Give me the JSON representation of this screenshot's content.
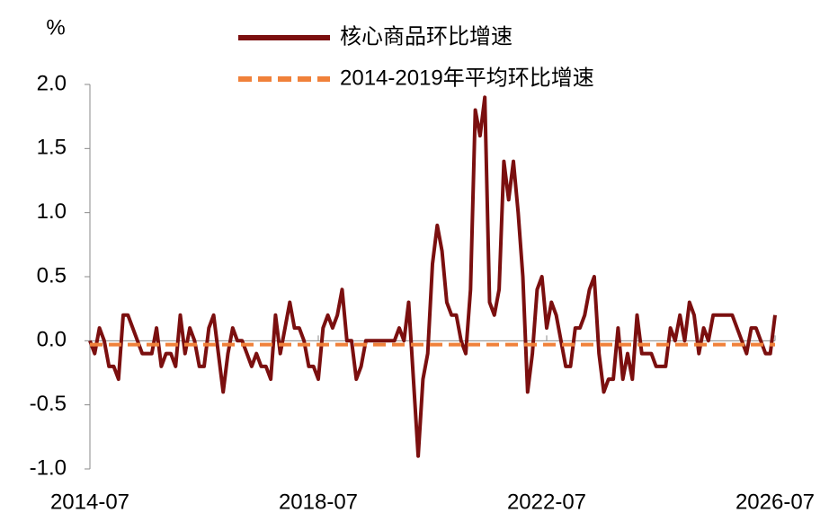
{
  "chart_data": {
    "type": "line",
    "ylabel": "%",
    "x": [
      "2014-07",
      "2014-08",
      "2014-09",
      "2014-10",
      "2014-11",
      "2014-12",
      "2015-01",
      "2015-02",
      "2015-03",
      "2015-04",
      "2015-05",
      "2015-06",
      "2015-07",
      "2015-08",
      "2015-09",
      "2015-10",
      "2015-11",
      "2015-12",
      "2016-01",
      "2016-02",
      "2016-03",
      "2016-04",
      "2016-05",
      "2016-06",
      "2016-07",
      "2016-08",
      "2016-09",
      "2016-10",
      "2016-11",
      "2016-12",
      "2017-01",
      "2017-02",
      "2017-03",
      "2017-04",
      "2017-05",
      "2017-06",
      "2017-07",
      "2017-08",
      "2017-09",
      "2017-10",
      "2017-11",
      "2017-12",
      "2018-01",
      "2018-02",
      "2018-03",
      "2018-04",
      "2018-05",
      "2018-06",
      "2018-07",
      "2018-08",
      "2018-09",
      "2018-10",
      "2018-11",
      "2018-12",
      "2019-01",
      "2019-02",
      "2019-03",
      "2019-04",
      "2019-05",
      "2019-06",
      "2019-07",
      "2019-08",
      "2019-09",
      "2019-10",
      "2019-11",
      "2019-12",
      "2020-01",
      "2020-02",
      "2020-03",
      "2020-04",
      "2020-05",
      "2020-06",
      "2020-07",
      "2020-08",
      "2020-09",
      "2020-10",
      "2020-11",
      "2020-12",
      "2021-01",
      "2021-02",
      "2021-03",
      "2021-04",
      "2021-05",
      "2021-06",
      "2021-07",
      "2021-08",
      "2021-09",
      "2021-10",
      "2021-11",
      "2021-12",
      "2022-01",
      "2022-02",
      "2022-03",
      "2022-04",
      "2022-05",
      "2022-06",
      "2022-07",
      "2022-08",
      "2022-09",
      "2022-10",
      "2022-11",
      "2022-12",
      "2023-01",
      "2023-02",
      "2023-03",
      "2023-04",
      "2023-05",
      "2023-06",
      "2023-07",
      "2023-08",
      "2023-09",
      "2023-10",
      "2023-11",
      "2023-12",
      "2024-01",
      "2024-02",
      "2024-03",
      "2024-04",
      "2024-05",
      "2024-06",
      "2024-07",
      "2024-08",
      "2024-09",
      "2024-10",
      "2024-11",
      "2024-12",
      "2025-01",
      "2025-02",
      "2025-03",
      "2025-04",
      "2025-05",
      "2025-06",
      "2025-07",
      "2025-08",
      "2025-09",
      "2025-10",
      "2025-11",
      "2025-12",
      "2026-01",
      "2026-02",
      "2026-03",
      "2026-04",
      "2026-05",
      "2026-06",
      "2026-07"
    ],
    "series": [
      {
        "name": "核心商品环比增速",
        "color": "#7b0f0f",
        "style": "solid",
        "values": [
          0,
          -0.1,
          0.1,
          0,
          -0.2,
          -0.2,
          -0.3,
          0.2,
          0.2,
          0.1,
          0,
          -0.1,
          -0.1,
          -0.1,
          0.1,
          -0.2,
          -0.1,
          -0.1,
          -0.2,
          0.2,
          -0.1,
          0.1,
          0,
          -0.2,
          -0.2,
          0.1,
          0.2,
          -0.1,
          -0.4,
          -0.1,
          0.1,
          0,
          0,
          -0.1,
          -0.2,
          -0.1,
          -0.2,
          -0.2,
          -0.3,
          0.2,
          -0.1,
          0.1,
          0.3,
          0.1,
          0.1,
          0,
          -0.2,
          -0.2,
          -0.3,
          0.1,
          0.2,
          0.1,
          0.2,
          0.4,
          0,
          0,
          -0.3,
          -0.2,
          0,
          0,
          0,
          0,
          0,
          0,
          0,
          0.1,
          0,
          0.3,
          -0.3,
          -0.9,
          -0.3,
          -0.1,
          0.6,
          0.9,
          0.7,
          0.3,
          0.2,
          0.2,
          0,
          -0.1,
          0.4,
          1.8,
          1.6,
          1.9,
          0.3,
          0.2,
          0.4,
          1.4,
          1.1,
          1.4,
          1.0,
          0.5,
          -0.4,
          -0.1,
          0.4,
          0.5,
          0.1,
          0.3,
          0.2,
          0,
          -0.2,
          -0.2,
          0.1,
          0.1,
          0.2,
          0.4,
          0.5,
          -0.1,
          -0.4,
          -0.3,
          -0.3,
          0.1,
          -0.3,
          -0.1,
          -0.3,
          0.2,
          -0.1,
          -0.1,
          -0.1,
          -0.2,
          -0.2,
          -0.2,
          0.1,
          0,
          0.2,
          0,
          0.3,
          0.2,
          -0.1,
          0.1,
          0,
          0.2,
          0.2,
          0.2,
          0.2,
          0.2,
          0.1,
          0,
          -0.1,
          0.1,
          0.1,
          0,
          -0.1,
          -0.1,
          0.2
        ]
      },
      {
        "name": "2014-2019年平均环比增速",
        "color": "#f0813a",
        "style": "dashed",
        "values": [
          -0.03,
          -0.03,
          -0.03,
          -0.03,
          -0.03,
          -0.03,
          -0.03,
          -0.03,
          -0.03,
          -0.03,
          -0.03,
          -0.03,
          -0.03,
          -0.03,
          -0.03,
          -0.03,
          -0.03,
          -0.03,
          -0.03,
          -0.03,
          -0.03,
          -0.03,
          -0.03,
          -0.03,
          -0.03,
          -0.03,
          -0.03,
          -0.03,
          -0.03,
          -0.03,
          -0.03,
          -0.03,
          -0.03,
          -0.03,
          -0.03,
          -0.03,
          -0.03,
          -0.03,
          -0.03,
          -0.03,
          -0.03,
          -0.03,
          -0.03,
          -0.03,
          -0.03,
          -0.03,
          -0.03,
          -0.03,
          -0.03,
          -0.03,
          -0.03,
          -0.03,
          -0.03,
          -0.03,
          -0.03,
          -0.03,
          -0.03,
          -0.03,
          -0.03,
          -0.03,
          -0.03,
          -0.03,
          -0.03,
          -0.03,
          -0.03,
          -0.03,
          -0.03,
          -0.03,
          -0.03,
          -0.03,
          -0.03,
          -0.03,
          -0.03,
          -0.03,
          -0.03,
          -0.03,
          -0.03,
          -0.03,
          -0.03,
          -0.03,
          -0.03,
          -0.03,
          -0.03,
          -0.03,
          -0.03,
          -0.03,
          -0.03,
          -0.03,
          -0.03,
          -0.03,
          -0.03,
          -0.03,
          -0.03,
          -0.03,
          -0.03,
          -0.03,
          -0.03,
          -0.03,
          -0.03,
          -0.03,
          -0.03,
          -0.03,
          -0.03,
          -0.03,
          -0.03,
          -0.03,
          -0.03,
          -0.03,
          -0.03,
          -0.03,
          -0.03,
          -0.03,
          -0.03,
          -0.03,
          -0.03,
          -0.03,
          -0.03,
          -0.03,
          -0.03,
          -0.03,
          -0.03,
          -0.03,
          -0.03,
          -0.03,
          -0.03,
          -0.03,
          -0.03,
          -0.03,
          -0.03,
          -0.03,
          -0.03,
          -0.03,
          -0.03,
          -0.03,
          -0.03,
          -0.03,
          -0.03,
          -0.03,
          -0.03,
          -0.03,
          -0.03,
          -0.03,
          -0.03,
          -0.03,
          -0.03
        ]
      }
    ],
    "xlim": [
      "2014-07",
      "2026-07"
    ],
    "xticks": [
      "2014-07",
      "2018-07",
      "2022-07",
      "2026-07"
    ],
    "ylim": [
      -1,
      2
    ],
    "yticks": [
      {
        "value": -1,
        "label": "-1.0"
      },
      {
        "value": -0.5,
        "label": "-0.5"
      },
      {
        "value": 0,
        "label": "0.0"
      },
      {
        "value": 0.5,
        "label": "0.5"
      },
      {
        "value": 1,
        "label": "1.0"
      },
      {
        "value": 1.5,
        "label": "1.5"
      },
      {
        "value": 2,
        "label": "2.0"
      }
    ],
    "legend": "top"
  }
}
